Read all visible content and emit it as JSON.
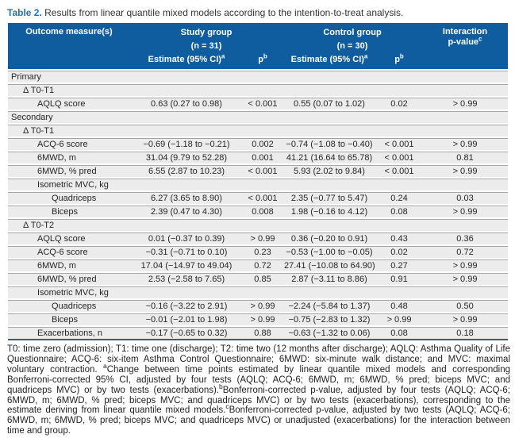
{
  "colors": {
    "header_bg": "#0f5d9e",
    "title_accent": "#1b74b8",
    "row_bg": "#ececec",
    "row_line": "#a6a6a6",
    "bottom_rule": "#35607f"
  },
  "title": {
    "label": "Table 2.",
    "text": " Results from linear quantile mixed models according to the intention-to-treat analysis."
  },
  "header": {
    "outcome": "Outcome measure(s)",
    "study_group": "Study group",
    "study_n": "(n = 31)",
    "control_group": "Control group",
    "control_n": "(n = 30)",
    "estimate_label": "Estimate (95% CI)",
    "estimate_sup": "a",
    "p_label": "p",
    "p_sup": "b",
    "interaction_line1": "Interaction",
    "interaction_line2": "p-value",
    "interaction_sup": "c"
  },
  "rows": [
    {
      "type": "section",
      "indent": 0,
      "label": "Primary"
    },
    {
      "type": "section",
      "indent": 1,
      "label": "Δ T0-T1"
    },
    {
      "type": "data",
      "indent": 2,
      "label": "AQLQ score",
      "est1": "0.63 (0.27 to 0.98)",
      "p1": "< 0.001",
      "est2": "0.55 (0.07 to 1.02)",
      "p2": "0.02",
      "inter": "> 0.99"
    },
    {
      "type": "section",
      "indent": 0,
      "label": "Secondary"
    },
    {
      "type": "section",
      "indent": 1,
      "label": "Δ T0-T1"
    },
    {
      "type": "data",
      "indent": 2,
      "label": "ACQ-6 score",
      "est1": "−0.69 (−1.18 to −0.21)",
      "p1": "0.002",
      "est2": "−0.74 (−1.08 to −0.40)",
      "p2": "< 0.001",
      "inter": "> 0.99"
    },
    {
      "type": "data",
      "indent": 2,
      "label": "6MWD, m",
      "est1": "31.04 (9.79 to 52.28)",
      "p1": "0.001",
      "est2": "41.21 (16.64 to 65.78)",
      "p2": "< 0.001",
      "inter": "0.81"
    },
    {
      "type": "data",
      "indent": 2,
      "label": "6MWD, % pred",
      "est1": "6.55 (2.87 to 10.23)",
      "p1": "< 0.001",
      "est2": "5.93 (2.02 to 9.84)",
      "p2": "< 0.001",
      "inter": "> 0.99"
    },
    {
      "type": "section",
      "indent": 2,
      "label": "Isometric MVC, kg"
    },
    {
      "type": "data",
      "indent": 3,
      "label": "Quadriceps",
      "est1": "6.27 (3.65 to 8.90)",
      "p1": "< 0.001",
      "est2": "2.35 (−0.77 to 5.47)",
      "p2": "0.24",
      "inter": "0.03"
    },
    {
      "type": "data",
      "indent": 3,
      "label": "Biceps",
      "est1": "2.39 (0.47 to 4.30)",
      "p1": "0.008",
      "est2": "1.98 (−0.16 to 4.12)",
      "p2": "0.08",
      "inter": "> 0.99"
    },
    {
      "type": "section",
      "indent": 1,
      "label": "Δ T0-T2"
    },
    {
      "type": "data",
      "indent": 2,
      "label": "AQLQ score",
      "est1": "0.01 (−0.37 to 0.39)",
      "p1": "> 0.99",
      "est2": "0.36 (−0.20 to 0.91)",
      "p2": "0.43",
      "inter": "0.36"
    },
    {
      "type": "data",
      "indent": 2,
      "label": "ACQ-6 score",
      "est1": "−0.31 (−0.71 to 0.10)",
      "p1": "0.23",
      "est2": "−0.53 (−1.00 to −0.05)",
      "p2": "0.02",
      "inter": "0.72"
    },
    {
      "type": "data",
      "indent": 2,
      "label": "6MWD, m",
      "est1": "17.04 (−14.97 to 49.04)",
      "p1": "0.72",
      "est2": "27.41 (−10.08 to 64.90)",
      "p2": "0.27",
      "inter": "> 0.99"
    },
    {
      "type": "data",
      "indent": 2,
      "label": "6MWD, % pred",
      "est1": "2.53 (−2.58 to 7.65)",
      "p1": "0.85",
      "est2": "2.87 (−3.11 to 8.86)",
      "p2": "0.91",
      "inter": "> 0.99"
    },
    {
      "type": "section",
      "indent": 2,
      "label": "Isometric MVC, kg"
    },
    {
      "type": "data",
      "indent": 3,
      "label": "Quadriceps",
      "est1": "−0.16 (−3.22 to 2.91)",
      "p1": "> 0.99",
      "est2": "−2.24 (−5.84 to 1.37)",
      "p2": "0.48",
      "inter": "0.50"
    },
    {
      "type": "data",
      "indent": 3,
      "label": "Biceps",
      "est1": "−0.01 (−2.01 to 1.98)",
      "p1": "> 0.99",
      "est2": "−0.75 (−2.83 to 1.32)",
      "p2": "> 0.99",
      "inter": "> 0.99"
    },
    {
      "type": "data",
      "indent": 2,
      "label": "Exacerbations, n",
      "est1": "−0.17 (−0.65 to 0.32)",
      "p1": "0.88",
      "est2": "−0.63 (−1.32 to 0.06)",
      "p2": "0.08",
      "inter": "0.18"
    }
  ],
  "footnote": {
    "segments": [
      {
        "sup": "",
        "text": "T0: time zero (admission); T1: time one (discharge); T2: time two (12 months after discharge); AQLQ: Asthma Quality of Life Questionnaire; ACQ-6: six-item Asthma Control Questionnaire; 6MWD: six-minute walk distance; and MVC: maximal voluntary contraction. "
      },
      {
        "sup": "a",
        "text": "Change between time points estimated by linear quantile mixed models and corresponding Bonferroni-corrected 95% CI, adjusted by four tests (AQLQ; ACQ-6; 6MWD, m; 6MWD, % pred; biceps MVC; and quadriceps MVC) or by two tests (exacerbations)."
      },
      {
        "sup": "b",
        "text": "Bonferroni-corrected p-value, adjusted by four tests (AQLQ; ACQ-6; 6MWD, m; 6MWD, % pred; biceps MVC; and quadriceps MVC) or by two tests (exacerbations), corresponding to the estimate deriving from linear quantile mixed models."
      },
      {
        "sup": "c",
        "text": "Bonferroni-corrected p-value, adjusted by two tests (AQLQ; ACQ-6; 6MWD, m; 6MWD, % pred; biceps MVC; and quadriceps MVC) or unadjusted (exacerbations) for the interaction between time and group."
      }
    ]
  }
}
